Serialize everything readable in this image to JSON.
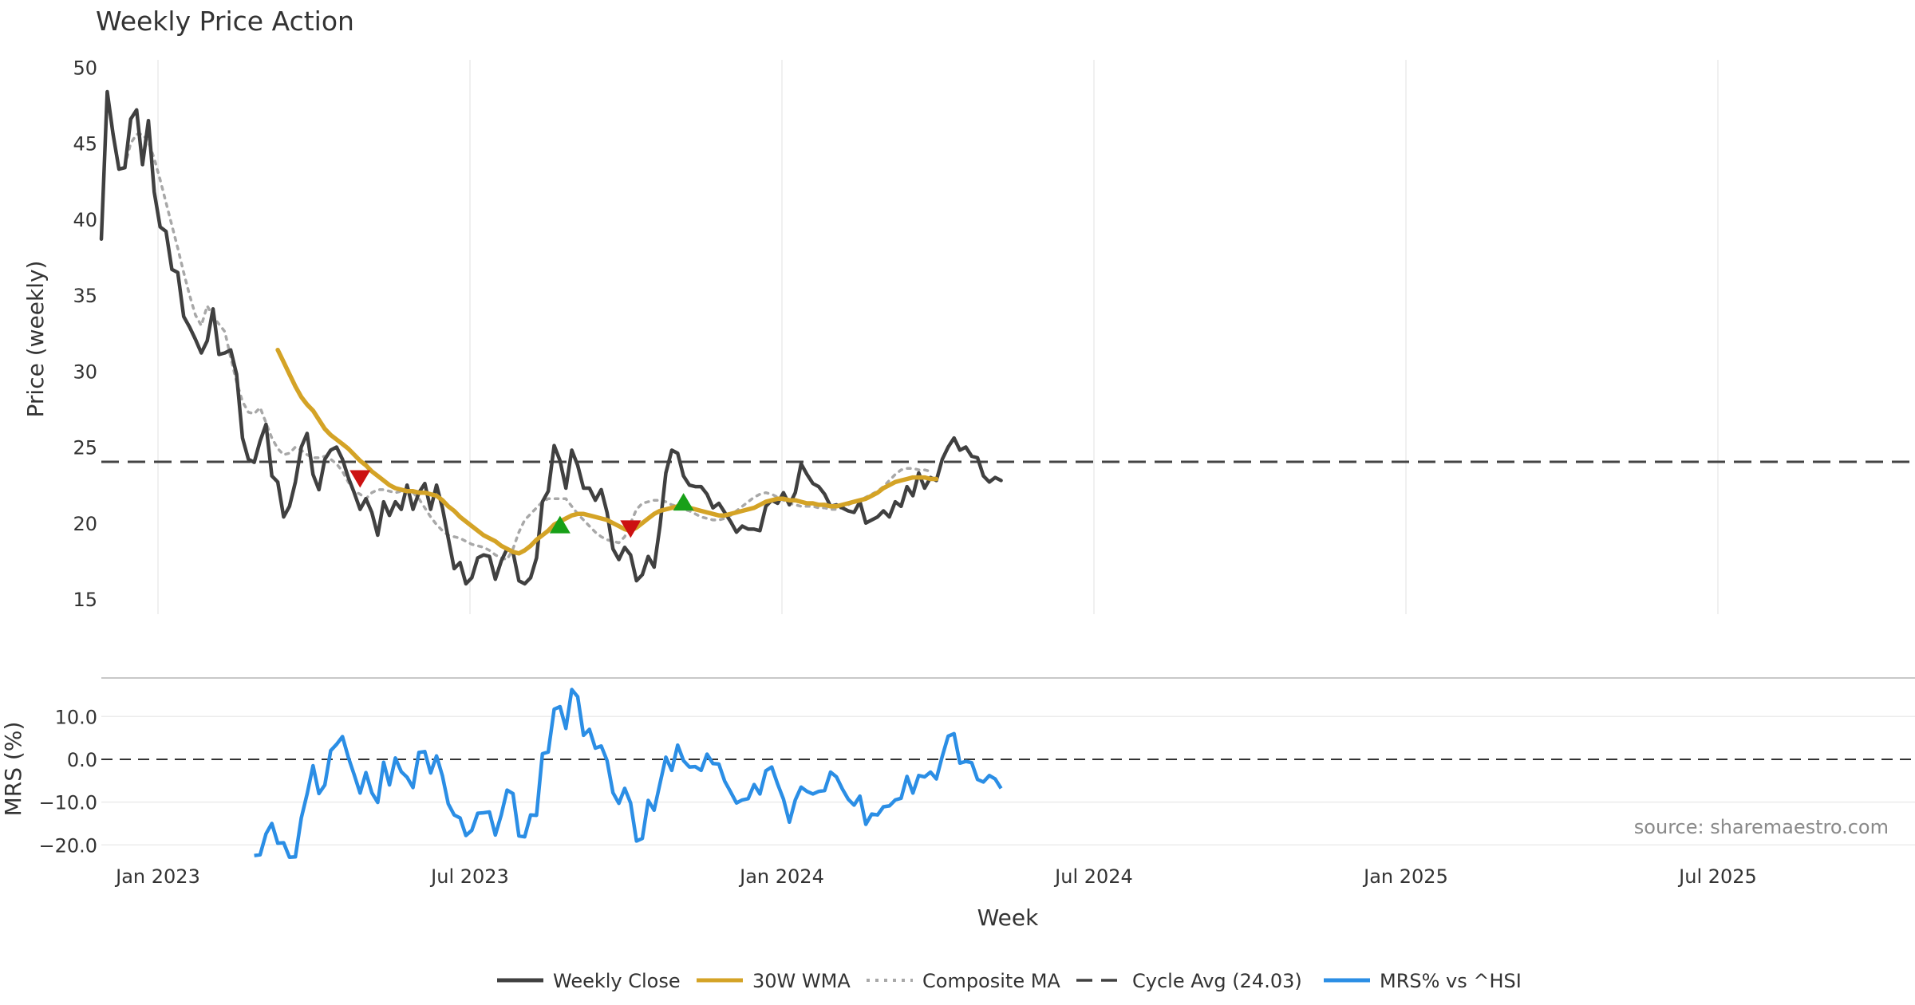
{
  "chart_data": {
    "type": "line",
    "title": "Weekly Price Action",
    "xlabel": "Week",
    "source": "source: sharemaestro.com",
    "x_ticks": [
      "Jan 2023",
      "Jul 2023",
      "Jan 2024",
      "Jul 2024",
      "Jan 2025",
      "Jul 2025"
    ],
    "price_panel": {
      "ylabel": "Price (weekly)",
      "ylim": [
        14,
        50.5
      ],
      "y_ticks": [
        "15",
        "20",
        "25",
        "30",
        "35",
        "40",
        "45",
        "50"
      ],
      "cycle_avg": 24.03,
      "series": [
        {
          "name": "Weekly Close",
          "color": "#404040",
          "start_week": 0,
          "values": [
            38.7,
            48.4,
            45.6,
            43.3,
            43.4,
            46.6,
            47.2,
            43.6,
            46.5,
            41.8,
            39.5,
            39.2,
            36.7,
            36.5,
            33.6,
            32.9,
            32.1,
            31.2,
            32.0,
            34.1,
            31.1,
            31.2,
            31.4,
            29.8,
            25.6,
            24.2,
            24.0,
            25.4,
            26.5,
            23.1,
            22.7,
            20.4,
            21.1,
            22.7,
            25.0,
            25.9,
            23.2,
            22.2,
            24.2,
            24.8,
            25.0,
            24.2,
            23.0,
            22.0,
            20.9,
            21.6,
            20.7,
            19.2,
            21.4,
            20.5,
            21.4,
            20.9,
            22.5,
            20.9,
            22.0,
            22.6,
            20.9,
            22.5,
            21.0,
            19.0,
            17.0,
            17.4,
            16.0,
            16.4,
            17.7,
            17.9,
            17.8,
            16.3,
            17.5,
            18.3,
            18.1,
            16.2,
            16.0,
            16.4,
            17.7,
            21.4,
            22.1,
            25.1,
            24.1,
            22.3,
            24.8,
            23.8,
            22.3,
            22.3,
            21.5,
            22.2,
            20.7,
            18.3,
            17.6,
            18.4,
            17.9,
            16.2,
            16.6,
            17.8,
            17.1,
            19.8,
            23.3,
            24.8,
            24.6,
            23.1,
            22.5,
            22.4,
            22.4,
            21.9,
            21.0,
            21.3,
            20.7,
            20.1,
            19.4,
            19.8,
            19.6,
            19.6,
            19.5,
            21.1,
            21.5,
            21.3,
            22.0,
            21.2,
            22.0,
            23.9,
            23.2,
            22.6,
            22.4,
            21.9,
            21.1,
            21.2,
            21.0,
            20.8,
            20.7,
            21.4,
            20.0,
            20.2,
            20.4,
            20.8,
            20.4,
            21.4,
            21.1,
            22.4,
            21.8,
            23.3,
            22.3,
            23.0,
            22.8,
            24.2,
            25.0,
            25.6,
            24.8,
            25.0,
            24.4,
            24.3,
            23.1,
            22.7,
            23.0,
            22.8
          ]
        },
        {
          "name": "30W WMA",
          "color": "#d4a326",
          "start_week": 30,
          "values": [
            31.4,
            30.6,
            29.8,
            29.0,
            28.3,
            27.8,
            27.4,
            26.8,
            26.2,
            25.8,
            25.5,
            25.2,
            24.9,
            24.5,
            24.1,
            23.8,
            23.4,
            23.1,
            22.8,
            22.5,
            22.3,
            22.2,
            22.1,
            22.1,
            22.0,
            22.0,
            21.9,
            21.8,
            21.5,
            21.1,
            20.8,
            20.4,
            20.1,
            19.8,
            19.5,
            19.2,
            19.0,
            18.8,
            18.5,
            18.3,
            18.1,
            18.0,
            18.2,
            18.5,
            18.9,
            19.2,
            19.5,
            19.9,
            20.1,
            20.3,
            20.5,
            20.6,
            20.6,
            20.5,
            20.4,
            20.3,
            20.2,
            20.0,
            19.8,
            19.6,
            19.5,
            19.7,
            20.0,
            20.3,
            20.6,
            20.8,
            20.9,
            21.0,
            21.1,
            21.0,
            21.0,
            20.9,
            20.8,
            20.7,
            20.6,
            20.5,
            20.5,
            20.6,
            20.7,
            20.8,
            20.9,
            21.0,
            21.2,
            21.4,
            21.5,
            21.6,
            21.6,
            21.5,
            21.5,
            21.4,
            21.3,
            21.3,
            21.2,
            21.2,
            21.1,
            21.1,
            21.2,
            21.3,
            21.4,
            21.5,
            21.6,
            21.8,
            22.0,
            22.3,
            22.5,
            22.7,
            22.8,
            22.9,
            23.0,
            23.0,
            23.0,
            22.9,
            22.9
          ]
        },
        {
          "name": "Composite MA",
          "color": "#a8a8a8",
          "start_week": 4,
          "values": [
            43.5,
            45.0,
            45.6,
            45.6,
            45.1,
            44.0,
            42.6,
            41.1,
            39.6,
            38.1,
            36.5,
            35.0,
            33.7,
            33.0,
            34.3,
            33.6,
            33.1,
            32.6,
            30.9,
            29.3,
            28.0,
            27.3,
            27.2,
            27.6,
            26.6,
            25.6,
            24.9,
            24.5,
            24.6,
            25.0,
            24.8,
            24.5,
            24.3,
            24.3,
            24.4,
            24.2,
            23.9,
            23.4,
            22.7,
            22.1,
            21.9,
            21.6,
            22.0,
            22.2,
            22.2,
            22.1,
            22.0,
            22.1,
            22.2,
            22.0,
            21.6,
            21.0,
            20.4,
            19.9,
            19.5,
            19.2,
            19.1,
            19.0,
            18.8,
            18.6,
            18.5,
            18.4,
            18.2,
            17.9,
            17.7,
            17.6,
            18.3,
            19.4,
            20.2,
            20.6,
            21.0,
            21.4,
            21.6,
            21.6,
            21.6,
            21.6,
            21.1,
            20.6,
            20.2,
            19.8,
            19.4,
            19.1,
            18.9,
            18.8,
            18.7,
            19.1,
            20.0,
            20.9,
            21.3,
            21.4,
            21.5,
            21.5,
            21.4,
            21.2,
            21.1,
            20.9,
            20.8,
            20.6,
            20.4,
            20.3,
            20.2,
            20.2,
            20.3,
            20.5,
            20.8,
            21.1,
            21.4,
            21.7,
            21.9,
            22.0,
            21.9,
            21.7,
            21.5,
            21.3,
            21.2,
            21.1,
            21.1,
            21.1,
            21.0,
            21.0,
            20.9,
            20.9,
            21.0,
            21.2,
            21.4,
            21.5,
            21.7,
            21.9,
            22.1,
            22.4,
            22.8,
            23.2,
            23.5,
            23.6,
            23.6,
            23.5,
            23.5,
            23.4
          ]
        }
      ],
      "markers": [
        {
          "type": "sell",
          "week": 44,
          "value": 22.9,
          "color": "#cc1111"
        },
        {
          "type": "buy",
          "week": 78,
          "value": 19.9,
          "color": "#18a018"
        },
        {
          "type": "sell",
          "week": 90,
          "value": 19.6,
          "color": "#cc1111"
        },
        {
          "type": "buy",
          "week": 99,
          "value": 21.4,
          "color": "#18a018"
        }
      ]
    },
    "mrs_panel": {
      "ylabel": "MRS (%)",
      "ylim": [
        -22,
        19
      ],
      "y_ticks": [
        "10.0",
        "0.0",
        "−10.0",
        "−20.0"
      ],
      "series": [
        {
          "name": "MRS% vs ^HSI",
          "color": "#2b8ee5",
          "start_week": 26,
          "values": [
            -22.5,
            -22.3,
            -17.4,
            -15.0,
            -19.6,
            -19.5,
            -22.9,
            -22.8,
            -13.7,
            -8.1,
            -1.5,
            -8.0,
            -6.0,
            2.0,
            3.5,
            5.3,
            0.5,
            -3.6,
            -7.9,
            -3.1,
            -7.8,
            -10.1,
            -0.7,
            -6.0,
            0.3,
            -2.9,
            -4.2,
            -6.6,
            1.6,
            1.8,
            -3.2,
            0.8,
            -3.9,
            -10.4,
            -13.0,
            -13.7,
            -17.8,
            -16.6,
            -12.6,
            -12.5,
            -12.3,
            -17.7,
            -13.0,
            -7.2,
            -8.0,
            -17.9,
            -18.1,
            -13.0,
            -13.1,
            1.3,
            1.7,
            11.7,
            12.3,
            7.2,
            16.3,
            14.6,
            5.6,
            7.0,
            2.6,
            3.1,
            -0.3,
            -7.8,
            -10.3,
            -6.8,
            -10.2,
            -19.1,
            -18.5,
            -9.6,
            -11.9,
            -5.7,
            0.5,
            -2.6,
            3.3,
            -0.3,
            -1.8,
            -1.7,
            -2.6,
            1.2,
            -1.0,
            -1.1,
            -5.1,
            -7.6,
            -10.2,
            -9.5,
            -9.2,
            -5.9,
            -8.1,
            -2.7,
            -1.8,
            -5.8,
            -9.3,
            -14.7,
            -9.5,
            -6.5,
            -7.5,
            -8.1,
            -7.5,
            -7.3,
            -3.0,
            -4.1,
            -6.9,
            -9.3,
            -10.7,
            -8.6,
            -15.2,
            -12.8,
            -13.0,
            -11.1,
            -10.9,
            -9.5,
            -9.1,
            -4.0,
            -7.9,
            -3.8,
            -4.1,
            -3.0,
            -4.6,
            0.7,
            5.4,
            6.0,
            -0.9,
            -0.5,
            -0.8,
            -4.7,
            -5.3,
            -3.8,
            -4.6,
            -6.8
          ]
        }
      ]
    },
    "legend": [
      {
        "label": "Weekly Close",
        "color": "#404040",
        "style": "solid"
      },
      {
        "label": "30W WMA",
        "color": "#d4a326",
        "style": "solid"
      },
      {
        "label": "Composite MA",
        "color": "#a8a8a8",
        "style": "dotted"
      },
      {
        "label": "Cycle Avg (24.03)",
        "color": "#404040",
        "style": "dashed"
      },
      {
        "label": "MRS% vs ^HSI",
        "color": "#2b8ee5",
        "style": "solid"
      }
    ],
    "legend_position": "bottom-center"
  }
}
